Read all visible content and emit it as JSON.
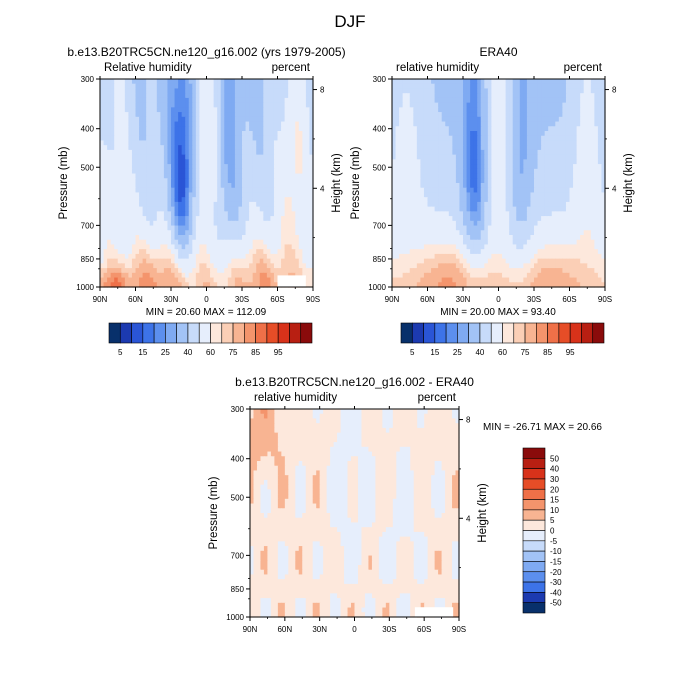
{
  "figure": {
    "title": "DJF"
  },
  "chart_data": [
    {
      "type": "heatmap",
      "title": "b.e13.B20TRC5CN.ne120_g16.002 (yrs 1979-2005)",
      "left_label": "Relative humidity",
      "right_label": "percent",
      "xlabel": "",
      "ylabel": "Pressure (mb)",
      "ylabel_right": "Height (km)",
      "x_ticks": [
        "90N",
        "60N",
        "30N",
        "0",
        "30S",
        "60S",
        "90S"
      ],
      "x_range": [
        90,
        -90
      ],
      "y_ticks": [
        "300",
        "400",
        "500",
        "700",
        "850",
        "1000"
      ],
      "y_range": [
        300,
        1000
      ],
      "right_ticks": [
        "8",
        "4"
      ],
      "min_max_text": "MIN = 20.60   MAX = 112.09",
      "min": 20.6,
      "max": 112.09,
      "colorbar_labels": [
        "5",
        "15",
        "25",
        "40",
        "60",
        "75",
        "85",
        "95"
      ]
    },
    {
      "type": "heatmap",
      "title": "ERA40",
      "left_label": "relative humidity",
      "right_label": "percent",
      "xlabel": "",
      "ylabel": "Pressure (mb)",
      "ylabel_right": "Height (km)",
      "x_ticks": [
        "90N",
        "60N",
        "30N",
        "0",
        "30S",
        "60S",
        "90S"
      ],
      "x_range": [
        90,
        -90
      ],
      "y_ticks": [
        "300",
        "400",
        "500",
        "700",
        "850",
        "1000"
      ],
      "y_range": [
        300,
        1000
      ],
      "right_ticks": [
        "8",
        "4"
      ],
      "min_max_text": "MIN = 20.00   MAX =  93.40",
      "min": 20.0,
      "max": 93.4,
      "colorbar_labels": [
        "5",
        "15",
        "25",
        "40",
        "60",
        "75",
        "85",
        "95"
      ]
    },
    {
      "type": "heatmap",
      "title": "b.e13.B20TRC5CN.ne120_g16.002 - ERA40",
      "left_label": "relative humidity",
      "right_label": "percent",
      "xlabel": "",
      "ylabel": "Pressure (mb)",
      "ylabel_right": "Height (km)",
      "x_ticks": [
        "90N",
        "60N",
        "30N",
        "0",
        "30S",
        "60S",
        "90S"
      ],
      "x_range": [
        90,
        -90
      ],
      "y_ticks": [
        "300",
        "400",
        "500",
        "700",
        "850",
        "1000"
      ],
      "y_range": [
        300,
        1000
      ],
      "right_ticks": [
        "8",
        "4"
      ],
      "min_max_text": "MIN = -26.71   MAX =  20.66",
      "min": -26.71,
      "max": 20.66,
      "colorbar_labels": [
        "50",
        "40",
        "30",
        "20",
        "15",
        "10",
        "5",
        "0",
        "-5",
        "-10",
        "-15",
        "-20",
        "-30",
        "-40",
        "-50"
      ]
    }
  ],
  "colors": {
    "absolute_bins": [
      "#08306b",
      "#1c3ab0",
      "#2a55d6",
      "#3d73e8",
      "#5c8fee",
      "#7faaf2",
      "#a2c3f6",
      "#c7dbfa",
      "#e6eefc",
      "#fde8dc",
      "#fbcfb6",
      "#f8b492",
      "#f4946c",
      "#ef7048",
      "#e64d27",
      "#d8321a",
      "#b81f12",
      "#8a0b0b"
    ],
    "difference_bins": [
      "#8a0b0b",
      "#b81f12",
      "#d8321a",
      "#e64d27",
      "#ef7048",
      "#f4946c",
      "#f8b492",
      "#fde8dc",
      "#e6eefc",
      "#c7dbfa",
      "#a2c3f6",
      "#7faaf2",
      "#5c8fee",
      "#3d73e8",
      "#1c3ab0",
      "#08306b"
    ],
    "mask": "#ffffff"
  }
}
